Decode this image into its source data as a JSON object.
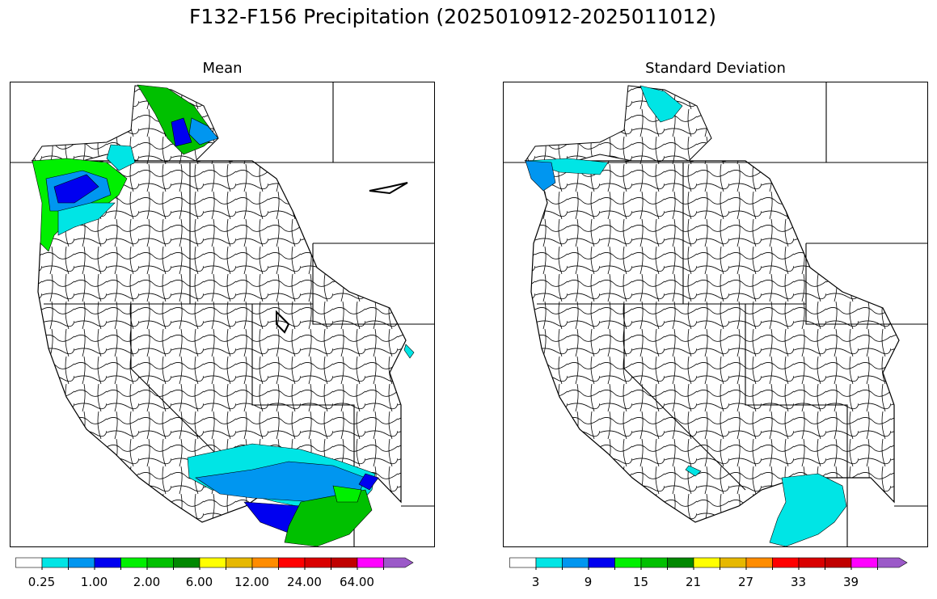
{
  "title": "F132-F156 Precipitation (2025010912-2025011012)",
  "panels": [
    {
      "title": "Mean",
      "colorbar": {
        "colors": [
          "#ffffff",
          "#00e5e5",
          "#0096f0",
          "#0000f0",
          "#00f000",
          "#00c000",
          "#008800",
          "#ffff00",
          "#e6b800",
          "#ff8c00",
          "#ff0000",
          "#d90000",
          "#c00000",
          "#ff00ff",
          "#9b59c8"
        ],
        "tick_labels": [
          "0.25",
          "1.00",
          "2.00",
          "6.00",
          "12.00",
          "24.00",
          "64.00"
        ],
        "extend": "max"
      }
    },
    {
      "title": "Standard Deviation",
      "colorbar": {
        "colors": [
          "#ffffff",
          "#00e5e5",
          "#0096f0",
          "#0000f0",
          "#00f000",
          "#00c000",
          "#008800",
          "#ffff00",
          "#e6b800",
          "#ff8c00",
          "#ff0000",
          "#d90000",
          "#c00000",
          "#ff00ff",
          "#9b59c8"
        ],
        "tick_labels": [
          "3",
          "9",
          "15",
          "21",
          "27",
          "33",
          "39"
        ],
        "extend": "max"
      }
    }
  ]
}
